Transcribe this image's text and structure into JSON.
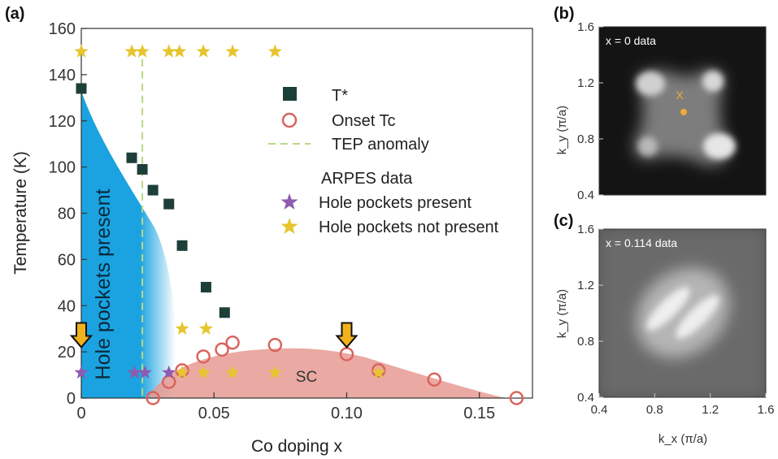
{
  "chart_data": [
    {
      "type": "scatter",
      "panel_label": "(a)",
      "xlabel": "Co doping x",
      "ylabel": "Temperature (K)",
      "xlim": [
        0,
        0.17
      ],
      "ylim": [
        0,
        160
      ],
      "xticks": [
        0,
        0.05,
        0.1,
        0.15
      ],
      "xtick_labels": [
        "0",
        "0.05",
        "0.10",
        "0.15"
      ],
      "yticks": [
        0,
        20,
        40,
        60,
        80,
        100,
        120,
        140,
        160
      ],
      "series": [
        {
          "name": "T*",
          "marker": "filled-square",
          "color": "#1d3f3a",
          "points": [
            [
              0,
              134
            ],
            [
              0.019,
              104
            ],
            [
              0.023,
              99
            ],
            [
              0.027,
              90
            ],
            [
              0.033,
              84
            ],
            [
              0.038,
              66
            ],
            [
              0.047,
              48
            ],
            [
              0.054,
              37
            ]
          ]
        },
        {
          "name": "Onset Tc",
          "marker": "open-circle",
          "color": "#d9645e",
          "points": [
            [
              0.027,
              0
            ],
            [
              0.033,
              7
            ],
            [
              0.038,
              12
            ],
            [
              0.046,
              18
            ],
            [
              0.053,
              21
            ],
            [
              0.057,
              24
            ],
            [
              0.073,
              23
            ],
            [
              0.1,
              19
            ],
            [
              0.112,
              12
            ],
            [
              0.133,
              8
            ],
            [
              0.164,
              0
            ]
          ]
        },
        {
          "name": "Hole pockets present",
          "marker": "star",
          "color": "#8e5bb0",
          "points": [
            [
              0,
              11
            ],
            [
              0.02,
              11
            ],
            [
              0.024,
              11
            ],
            [
              0.033,
              11
            ]
          ]
        },
        {
          "name": "Hole pockets not present",
          "marker": "star",
          "color": "#e6c52e",
          "points": [
            [
              0,
              150
            ],
            [
              0.019,
              150
            ],
            [
              0.023,
              150
            ],
            [
              0.033,
              150
            ],
            [
              0.037,
              150
            ],
            [
              0.046,
              150
            ],
            [
              0.057,
              150
            ],
            [
              0.073,
              150
            ],
            [
              0.038,
              30
            ],
            [
              0.047,
              30
            ],
            [
              0.038,
              11
            ],
            [
              0.046,
              11
            ],
            [
              0.057,
              11
            ],
            [
              0.073,
              11
            ],
            [
              0.112,
              11
            ]
          ]
        }
      ],
      "tep_anomaly_x": 0.023,
      "legend": {
        "items": [
          {
            "label": "T*",
            "marker": "filled-square",
            "color": "#1d3f3a"
          },
          {
            "label": "Onset Tc",
            "marker": "open-circle",
            "color": "#d9645e"
          },
          {
            "label": "TEP anomaly",
            "marker": "dashed-line",
            "color": "#b8d888"
          }
        ],
        "subheader": "ARPES data",
        "arpes_items": [
          {
            "label": "Hole pockets present",
            "marker": "star",
            "color": "#8e5bb0"
          },
          {
            "label": "Hole pockets not present",
            "marker": "star",
            "color": "#e6c52e"
          }
        ],
        "position": "top-right"
      },
      "region_labels": {
        "blue": "Hole pockets present",
        "red": "SC"
      },
      "arrows_at_x": [
        0,
        0.1
      ],
      "colors": {
        "blue_region": "#1aa3e0",
        "red_region": "#e89a93",
        "arrow": "#f2b21c"
      }
    },
    {
      "type": "heatmap",
      "panel_label": "(b)",
      "annotation": "x = 0 data",
      "ylabel": "k_y (π/a)",
      "ylim": [
        0.4,
        1.6
      ],
      "yticks": [
        "0.4",
        "0.8",
        "1.2",
        "1.6"
      ],
      "markers": [
        {
          "symbol": "X",
          "kx": 1.08,
          "ky": 1.12,
          "color": "#f2a93a"
        },
        {
          "symbol": "dot",
          "kx": 1.08,
          "ky": 1.02,
          "color": "#f2a93a"
        }
      ]
    },
    {
      "type": "heatmap",
      "panel_label": "(c)",
      "annotation": "x = 0.114 data",
      "xlabel": "k_x (π/a)",
      "ylabel": "k_y (π/a)",
      "xlim": [
        0.4,
        1.6
      ],
      "ylim": [
        0.4,
        1.6
      ],
      "xticks": [
        "0.4",
        "0.8",
        "1.2",
        "1.6"
      ],
      "yticks": [
        "0.4",
        "0.8",
        "1.2",
        "1.6"
      ]
    }
  ]
}
